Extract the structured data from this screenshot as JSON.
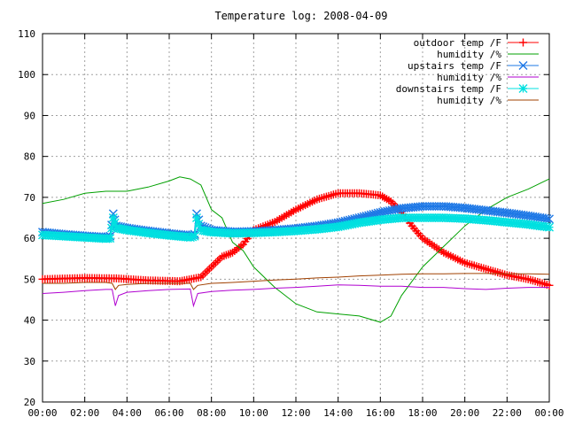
{
  "chart_data": {
    "type": "line",
    "title": "Temperature log: 2008-04-09",
    "xlabel": "",
    "ylabel": "",
    "xlim": [
      0,
      24
    ],
    "ylim": [
      20,
      110
    ],
    "x_ticks": [
      "00:00",
      "02:00",
      "04:00",
      "06:00",
      "08:00",
      "10:00",
      "12:00",
      "14:00",
      "16:00",
      "18:00",
      "20:00",
      "22:00",
      "00:00"
    ],
    "y_ticks": [
      20,
      30,
      40,
      50,
      60,
      70,
      80,
      90,
      100,
      110
    ],
    "grid": true,
    "legend_position": "top-right",
    "series": [
      {
        "name": "outdoor temp /F",
        "color": "#ff0000",
        "marker": "plus",
        "points": [
          [
            0,
            50
          ],
          [
            2,
            50.3
          ],
          [
            3.5,
            50.2
          ],
          [
            5,
            49.7
          ],
          [
            6.5,
            49.5
          ],
          [
            7.5,
            50.5
          ],
          [
            8,
            53
          ],
          [
            8.5,
            55.5
          ],
          [
            9,
            56.5
          ],
          [
            9.5,
            58.5
          ],
          [
            10,
            62
          ],
          [
            11,
            64
          ],
          [
            12,
            67
          ],
          [
            13,
            69.5
          ],
          [
            14,
            71
          ],
          [
            15,
            71
          ],
          [
            16,
            70.5
          ],
          [
            16.5,
            69
          ],
          [
            17,
            66.5
          ],
          [
            17.5,
            63
          ],
          [
            18,
            60
          ],
          [
            19,
            56.5
          ],
          [
            20,
            54
          ],
          [
            21,
            52.5
          ],
          [
            22,
            51
          ],
          [
            23,
            50
          ],
          [
            24,
            48.5
          ]
        ]
      },
      {
        "name": "humidity /%",
        "color": "#00a000",
        "marker": "none",
        "points": [
          [
            0,
            68.5
          ],
          [
            1,
            69.5
          ],
          [
            2,
            71
          ],
          [
            3,
            71.5
          ],
          [
            4,
            71.5
          ],
          [
            5,
            72.5
          ],
          [
            6,
            74
          ],
          [
            6.5,
            75
          ],
          [
            7,
            74.5
          ],
          [
            7.5,
            73
          ],
          [
            8,
            67
          ],
          [
            8.5,
            65
          ],
          [
            9,
            59
          ],
          [
            9.5,
            57
          ],
          [
            10,
            53
          ],
          [
            11,
            48
          ],
          [
            12,
            44
          ],
          [
            13,
            42
          ],
          [
            14,
            41.5
          ],
          [
            15,
            41
          ],
          [
            16,
            39.5
          ],
          [
            16.5,
            41
          ],
          [
            17,
            46
          ],
          [
            18,
            53
          ],
          [
            19,
            58
          ],
          [
            20,
            63
          ],
          [
            21,
            67
          ],
          [
            22,
            70
          ],
          [
            23,
            72
          ],
          [
            24,
            74.5
          ]
        ]
      },
      {
        "name": "upstairs temp /F",
        "color": "#1e78e6",
        "marker": "cross",
        "points": [
          [
            0,
            61.5
          ],
          [
            1,
            61
          ],
          [
            2,
            60.6
          ],
          [
            3,
            60.3
          ],
          [
            3.2,
            60.5
          ],
          [
            3.35,
            66
          ],
          [
            3.5,
            63
          ],
          [
            4,
            62.5
          ],
          [
            5,
            61.8
          ],
          [
            6,
            61.2
          ],
          [
            7,
            60.7
          ],
          [
            7.2,
            61
          ],
          [
            7.3,
            66
          ],
          [
            7.5,
            63
          ],
          [
            8,
            62
          ],
          [
            9,
            61.6
          ],
          [
            10,
            61.7
          ],
          [
            11,
            62
          ],
          [
            12,
            62.4
          ],
          [
            13,
            63
          ],
          [
            14,
            63.8
          ],
          [
            15,
            65
          ],
          [
            16,
            66.3
          ],
          [
            17,
            67.3
          ],
          [
            18,
            67.8
          ],
          [
            19,
            67.8
          ],
          [
            20,
            67.4
          ],
          [
            21,
            66.8
          ],
          [
            22,
            66.2
          ],
          [
            23,
            65.5
          ],
          [
            24,
            64.7
          ]
        ]
      },
      {
        "name": "humidity /%",
        "color": "#b000d0",
        "marker": "none",
        "points": [
          [
            0,
            46.5
          ],
          [
            1,
            46.8
          ],
          [
            2,
            47.2
          ],
          [
            3,
            47.5
          ],
          [
            3.3,
            47.5
          ],
          [
            3.45,
            43.5
          ],
          [
            3.6,
            46
          ],
          [
            4,
            46.8
          ],
          [
            5,
            47.2
          ],
          [
            6,
            47.5
          ],
          [
            7,
            47.6
          ],
          [
            7.15,
            43.5
          ],
          [
            7.35,
            46.5
          ],
          [
            8,
            47
          ],
          [
            9,
            47.3
          ],
          [
            10,
            47.5
          ],
          [
            11,
            47.8
          ],
          [
            12,
            48
          ],
          [
            13,
            48.3
          ],
          [
            14,
            48.6
          ],
          [
            15,
            48.5
          ],
          [
            16,
            48.3
          ],
          [
            17,
            48.3
          ],
          [
            18,
            48
          ],
          [
            19,
            48
          ],
          [
            20,
            47.7
          ],
          [
            21,
            47.5
          ],
          [
            22,
            47.8
          ],
          [
            23,
            48
          ],
          [
            24,
            48
          ]
        ]
      },
      {
        "name": "downstairs temp /F",
        "color": "#00e0e0",
        "marker": "star",
        "points": [
          [
            0,
            60.8
          ],
          [
            1,
            60.5
          ],
          [
            2,
            60.2
          ],
          [
            3,
            59.9
          ],
          [
            3.2,
            60
          ],
          [
            3.35,
            65
          ],
          [
            3.5,
            62.5
          ],
          [
            4,
            62
          ],
          [
            5,
            61.3
          ],
          [
            6,
            60.7
          ],
          [
            7,
            60.2
          ],
          [
            7.2,
            60.5
          ],
          [
            7.3,
            65
          ],
          [
            7.5,
            62
          ],
          [
            8,
            61.5
          ],
          [
            9,
            61.2
          ],
          [
            10,
            61.3
          ],
          [
            11,
            61.5
          ],
          [
            12,
            61.8
          ],
          [
            13,
            62.2
          ],
          [
            14,
            62.8
          ],
          [
            15,
            63.8
          ],
          [
            16,
            64.5
          ],
          [
            17,
            65
          ],
          [
            18,
            65
          ],
          [
            19,
            65
          ],
          [
            20,
            64.8
          ],
          [
            21,
            64.4
          ],
          [
            22,
            63.9
          ],
          [
            23,
            63.4
          ],
          [
            24,
            62.7
          ]
        ]
      },
      {
        "name": "humidity /%",
        "color": "#a04000",
        "marker": "none",
        "points": [
          [
            0,
            49
          ],
          [
            1,
            49
          ],
          [
            2,
            49.2
          ],
          [
            3,
            49.2
          ],
          [
            3.3,
            49
          ],
          [
            3.45,
            47.5
          ],
          [
            3.6,
            48.5
          ],
          [
            4,
            48.7
          ],
          [
            5,
            49
          ],
          [
            6,
            49
          ],
          [
            7,
            49
          ],
          [
            7.15,
            47.5
          ],
          [
            7.35,
            48.5
          ],
          [
            8,
            49
          ],
          [
            9,
            49.2
          ],
          [
            10,
            49.5
          ],
          [
            11,
            49.8
          ],
          [
            12,
            50
          ],
          [
            13,
            50.3
          ],
          [
            14,
            50.5
          ],
          [
            15,
            50.8
          ],
          [
            16,
            51
          ],
          [
            17,
            51.2
          ],
          [
            18,
            51.3
          ],
          [
            19,
            51.3
          ],
          [
            20,
            51.4
          ],
          [
            21,
            51.4
          ],
          [
            22,
            51.3
          ],
          [
            23,
            51.3
          ],
          [
            24,
            51.2
          ]
        ]
      }
    ]
  }
}
